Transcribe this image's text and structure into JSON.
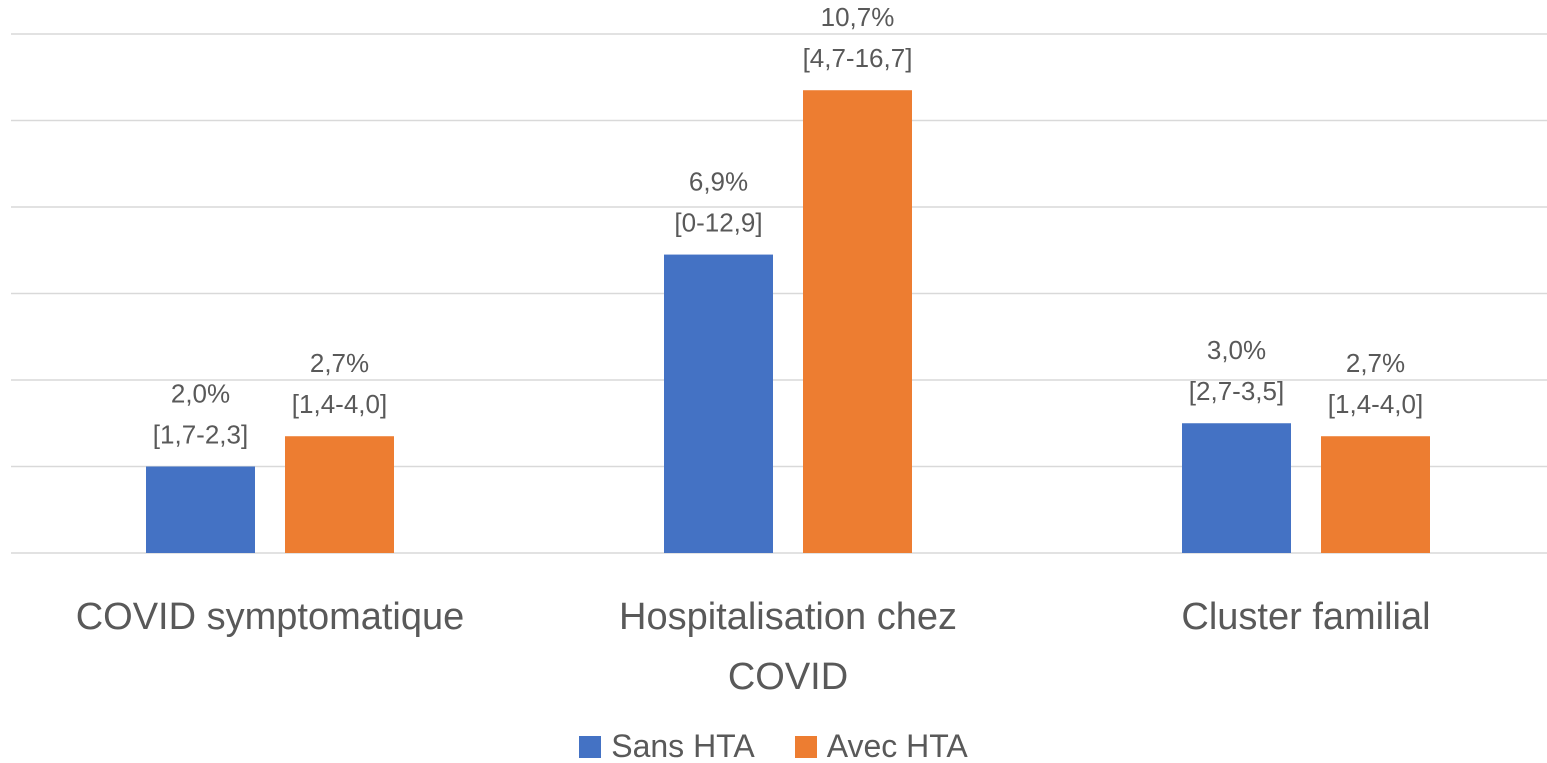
{
  "chart_data": {
    "type": "bar",
    "categories": [
      "COVID symptomatique",
      "Hospitalisation chez COVID",
      "Cluster familial"
    ],
    "series": [
      {
        "name": "Sans HTA",
        "color": "#4472c4",
        "values": [
          2.0,
          6.9,
          3.0
        ],
        "value_labels": [
          "2,0%",
          "6,9%",
          "3,0%"
        ],
        "interval_labels": [
          "[1,7-2,3]",
          "[0-12,9]",
          "[2,7-3,5]"
        ]
      },
      {
        "name": "Avec HTA",
        "color": "#ed7d31",
        "values": [
          2.7,
          10.7,
          2.7
        ],
        "value_labels": [
          "2,7%",
          "10,7%",
          "2,7%"
        ],
        "interval_labels": [
          "[1,4-4,0]",
          "[4,7-16,7]",
          "[1,4-4,0]"
        ]
      }
    ],
    "ylim": [
      0,
      12
    ],
    "yticks": [
      0,
      2,
      4,
      6,
      8,
      10,
      12
    ],
    "grid": true,
    "legend": "bottom"
  }
}
